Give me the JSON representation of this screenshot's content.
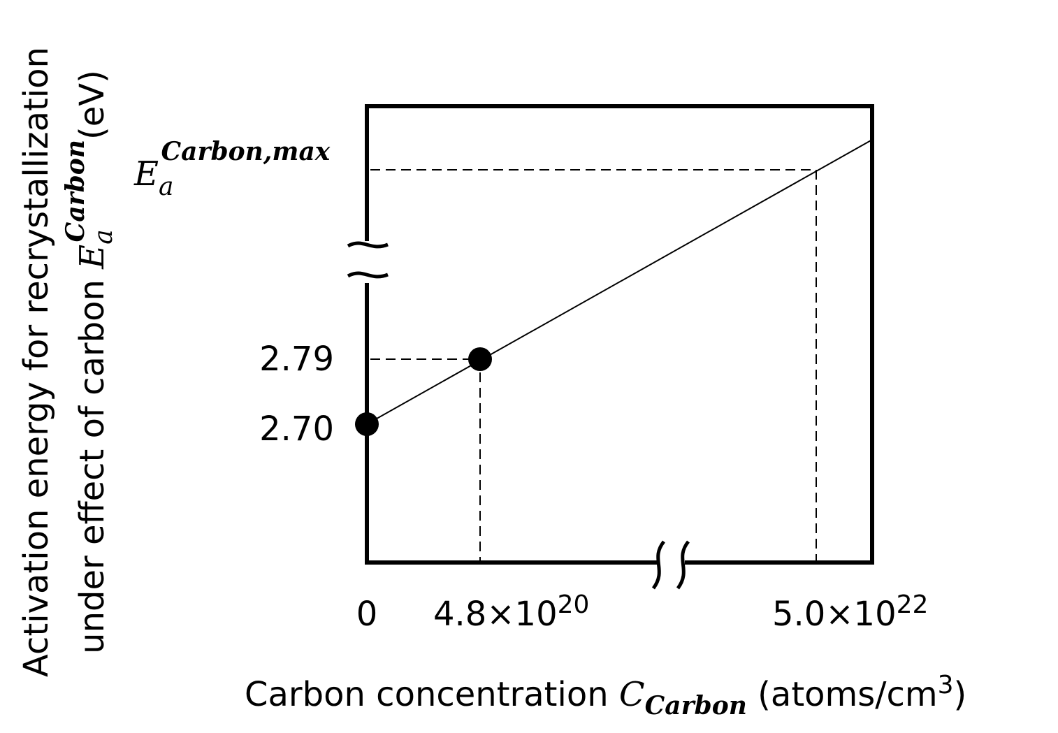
{
  "y_axis": {
    "title_line1": "Activation energy for recrystallization",
    "title_line2": "under effect of carbon ",
    "symbol": "E",
    "symbol_sub": "a",
    "symbol_sup": "Carbon",
    "unit": "(eV)"
  },
  "y_labels": [
    "2.70",
    "2.79"
  ],
  "y_max_label": {
    "symbol": "E",
    "sub": "a",
    "sup": "Carbon,max"
  },
  "x_labels": [
    {
      "text": "0"
    },
    {
      "text": "4.8×10",
      "sup": "20"
    },
    {
      "text": "5.0×10",
      "sup": "22"
    }
  ],
  "x_axis": {
    "title": "Carbon concentration ",
    "symbol": "C",
    "sub": "Carbon",
    "unit": " (atoms/cm",
    "unit_sup": "3",
    "unit_end": ")"
  }
}
